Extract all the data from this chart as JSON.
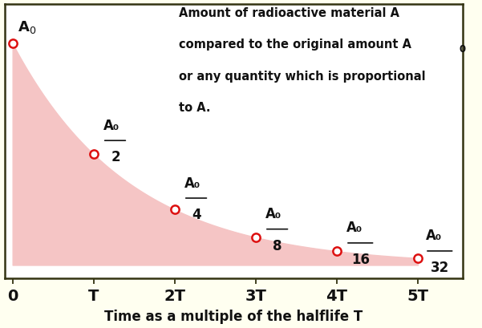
{
  "xlabel": "Time as a multiple of the halflife T",
  "x_ticks": [
    0,
    1,
    2,
    3,
    4,
    5
  ],
  "x_tick_labels": [
    "0",
    "T",
    "2T",
    "3T",
    "4T",
    "5T"
  ],
  "points_x": [
    0,
    1,
    2,
    3,
    4,
    5
  ],
  "points_y": [
    1.0,
    0.5,
    0.25,
    0.125,
    0.0625,
    0.03125
  ],
  "point_color": "#dd1111",
  "curve_fill_color": "#f5c5c5",
  "fig_bg_color": "#fffff0",
  "plot_bg_color": "#ffffff",
  "border_color": "#333311",
  "text_color": "#111111",
  "label_color": "#111111",
  "xlim": [
    -0.1,
    5.55
  ],
  "ylim": [
    -0.06,
    1.18
  ],
  "figsize": [
    6.01,
    4.1
  ],
  "dpi": 100,
  "annotation_text": "Amount of radioactive material A\ncompared to the original amount A",
  "ann_sub": "0",
  "ann_line3": "or any quantity which is proportional",
  "ann_line4": "to A."
}
